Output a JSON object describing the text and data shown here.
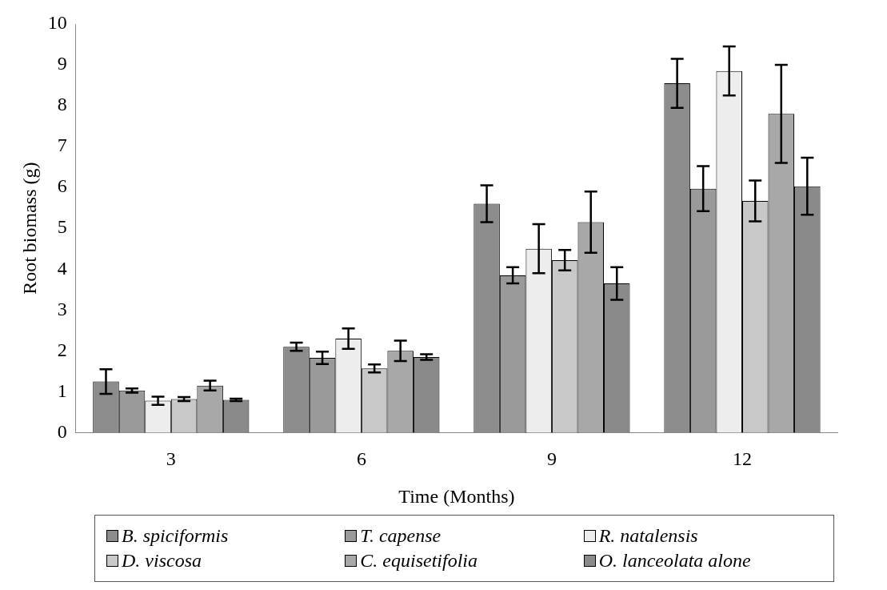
{
  "chart_data": {
    "type": "bar",
    "xlabel": "Time (Months)",
    "ylabel": "Root biomass (g)",
    "categories": [
      "3",
      "6",
      "9",
      "12"
    ],
    "ylim": [
      0,
      10
    ],
    "yticks": [
      0,
      1,
      2,
      3,
      4,
      5,
      6,
      7,
      8,
      9,
      10
    ],
    "grid": false,
    "legend": "bottom",
    "series": [
      {
        "name": "B. spiciformis",
        "color": "#8c8c8c",
        "values": [
          1.25,
          2.1,
          5.6,
          8.55
        ],
        "errors": [
          0.3,
          0.1,
          0.45,
          0.6
        ]
      },
      {
        "name": "T. capense",
        "color": "#9a9a9a",
        "values": [
          1.03,
          1.83,
          3.85,
          5.97
        ],
        "errors": [
          0.05,
          0.15,
          0.2,
          0.55
        ]
      },
      {
        "name": "R. natalensis",
        "color": "#ededed",
        "values": [
          0.78,
          2.3,
          4.5,
          8.85
        ],
        "errors": [
          0.1,
          0.25,
          0.6,
          0.6
        ]
      },
      {
        "name": "D. viscosa",
        "color": "#c8c8c8",
        "values": [
          0.82,
          1.57,
          4.22,
          5.67
        ],
        "errors": [
          0.05,
          0.1,
          0.25,
          0.5
        ]
      },
      {
        "name": "C. equisetifolia",
        "color": "#a8a8a8",
        "values": [
          1.15,
          2.0,
          5.15,
          7.8
        ],
        "errors": [
          0.12,
          0.25,
          0.75,
          1.2
        ]
      },
      {
        "name": "O. lanceolata alone",
        "color": "#8a8a8a",
        "values": [
          0.8,
          1.85,
          3.65,
          6.03
        ],
        "errors": [
          0.03,
          0.07,
          0.4,
          0.7
        ]
      }
    ]
  }
}
